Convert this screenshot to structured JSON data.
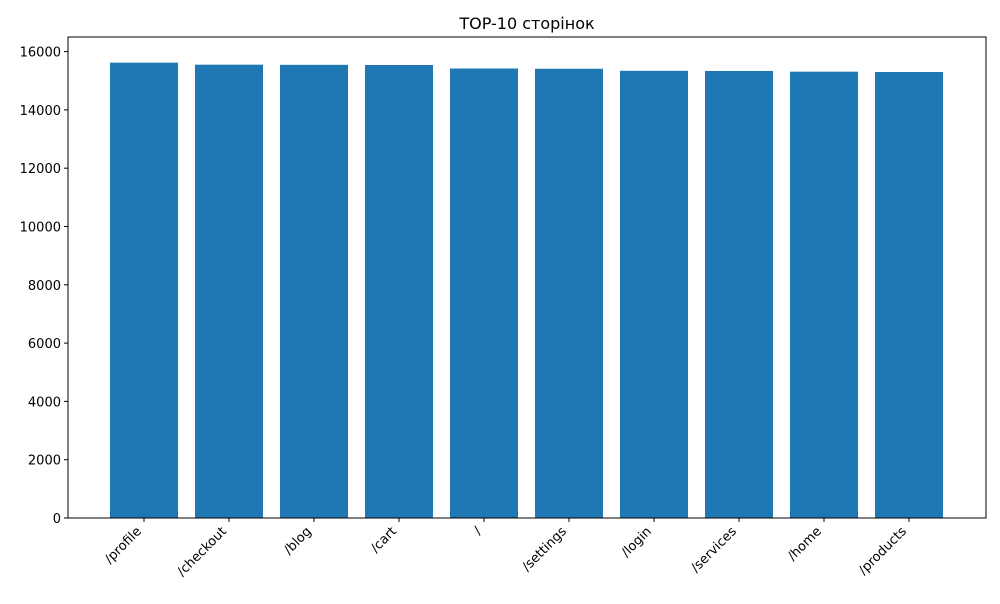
{
  "chart_data": {
    "type": "bar",
    "title": "TOP-10 сторінок",
    "xlabel": "",
    "ylabel": "",
    "categories": [
      "/profile",
      "/checkout",
      "/blog",
      "/cart",
      "/",
      "/settings",
      "/login",
      "/services",
      "/home",
      "/products"
    ],
    "values": [
      15620,
      15550,
      15545,
      15540,
      15420,
      15410,
      15340,
      15335,
      15310,
      15300
    ],
    "ylim": [
      0,
      16500
    ],
    "yticks": [
      "0",
      "2000",
      "4000",
      "6000",
      "8000",
      "10000",
      "12000",
      "14000",
      "16000"
    ],
    "grid": false,
    "legend": "none",
    "bar_color": "#1f77b4"
  }
}
